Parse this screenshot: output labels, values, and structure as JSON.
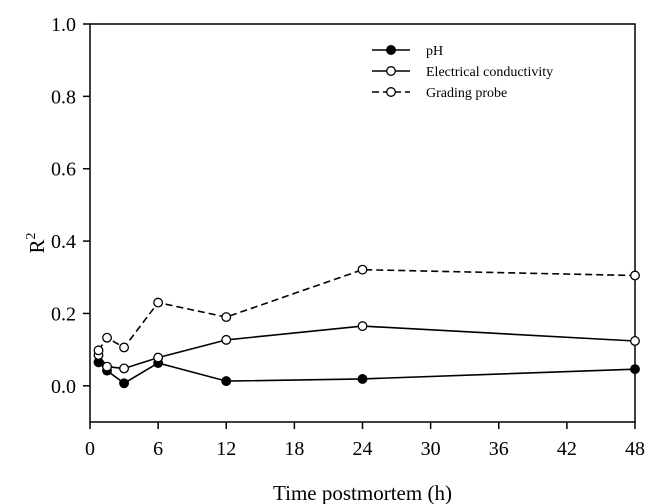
{
  "chart_data": {
    "type": "line",
    "xlabel": "Time postmortem (h)",
    "ylabel_base": "R",
    "ylabel_sup": "2",
    "xlim": [
      0,
      48
    ],
    "ylim": [
      -0.1,
      1.0
    ],
    "xticks": [
      0,
      6,
      12,
      18,
      24,
      30,
      36,
      42,
      48
    ],
    "yticks": [
      0.0,
      0.2,
      0.4,
      0.6,
      0.8,
      1.0
    ],
    "xtick_labels": [
      "0",
      "6",
      "12",
      "18",
      "24",
      "30",
      "36",
      "42",
      "48"
    ],
    "ytick_labels": [
      "0.0",
      "0.2",
      "0.4",
      "0.6",
      "0.8",
      "1.0"
    ],
    "grid": false,
    "legend_position": "top-right",
    "series": [
      {
        "name": "pH",
        "marker": "filled-circle",
        "line": "solid",
        "color": "#000000",
        "x": [
          0.75,
          1.5,
          3,
          6,
          12,
          24,
          48
        ],
        "y": [
          0.065,
          0.042,
          0.007,
          0.063,
          0.013,
          0.019,
          0.046
        ]
      },
      {
        "name": "Electrical conductivity",
        "marker": "open-circle",
        "line": "solid",
        "color": "#000000",
        "x": [
          0.75,
          1.5,
          3,
          6,
          12,
          24,
          48
        ],
        "y": [
          0.085,
          0.053,
          0.048,
          0.078,
          0.127,
          0.165,
          0.124
        ]
      },
      {
        "name": "Grading probe",
        "marker": "open-circle",
        "line": "dashed",
        "color": "#000000",
        "x": [
          0.75,
          1.5,
          3,
          6,
          12,
          24,
          48
        ],
        "y": [
          0.098,
          0.133,
          0.106,
          0.23,
          0.19,
          0.321,
          0.305
        ]
      }
    ]
  }
}
